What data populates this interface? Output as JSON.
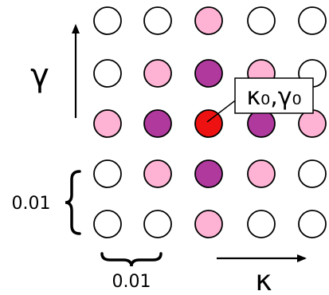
{
  "grid": {
    "rows": [
      [
        "white",
        "white",
        "pink",
        "white",
        "white"
      ],
      [
        "white",
        "pink",
        "purple",
        "pink",
        "white"
      ],
      [
        "pink",
        "purple",
        "red",
        "purple",
        "pink"
      ],
      [
        "white",
        "pink",
        "purple",
        "pink",
        "white"
      ],
      [
        "white",
        "white",
        "pink",
        "white",
        "white"
      ]
    ],
    "colors": {
      "white": "#ffffff",
      "pink": "#ffb3d4",
      "purple": "#b0399e",
      "red": "#ee1111"
    }
  },
  "axes": {
    "gamma_label": "γ",
    "kappa_label": "κ"
  },
  "callout": {
    "text": "κ₀,γ₀"
  },
  "spacing": {
    "vertical_label": "0.01",
    "horizontal_label": "0.01"
  }
}
